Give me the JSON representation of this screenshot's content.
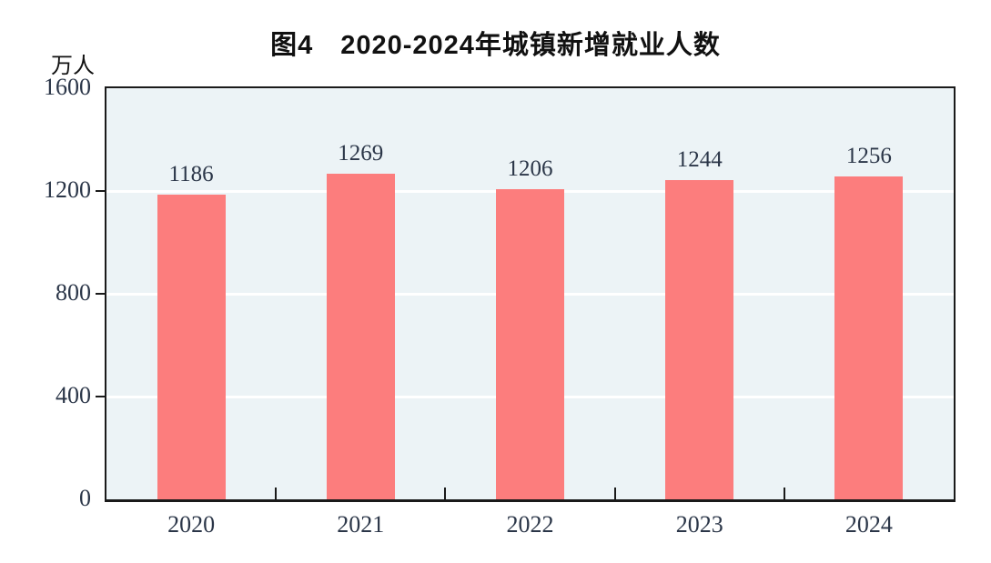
{
  "chart_data": {
    "type": "bar",
    "title": "图4　2020-2024年城镇新增就业人数",
    "unit_label": "万人",
    "categories": [
      "2020",
      "2021",
      "2022",
      "2023",
      "2024"
    ],
    "values": [
      1186,
      1269,
      1206,
      1244,
      1256
    ],
    "xlabel": "",
    "ylabel": "万人",
    "ylim": [
      0,
      1600
    ],
    "y_ticks": [
      0,
      400,
      800,
      1200,
      1600
    ],
    "grid_ticks": [
      400,
      800,
      1200
    ],
    "legend": "none",
    "grid": "horizontal-white",
    "colors": {
      "bar": "#FC7D7D",
      "plot_background": "#ECF3F6",
      "grid_line": "#FFFFFF",
      "axis": "#1A1A1A",
      "label_text": "#2B3648",
      "title_text": "#111111"
    }
  }
}
